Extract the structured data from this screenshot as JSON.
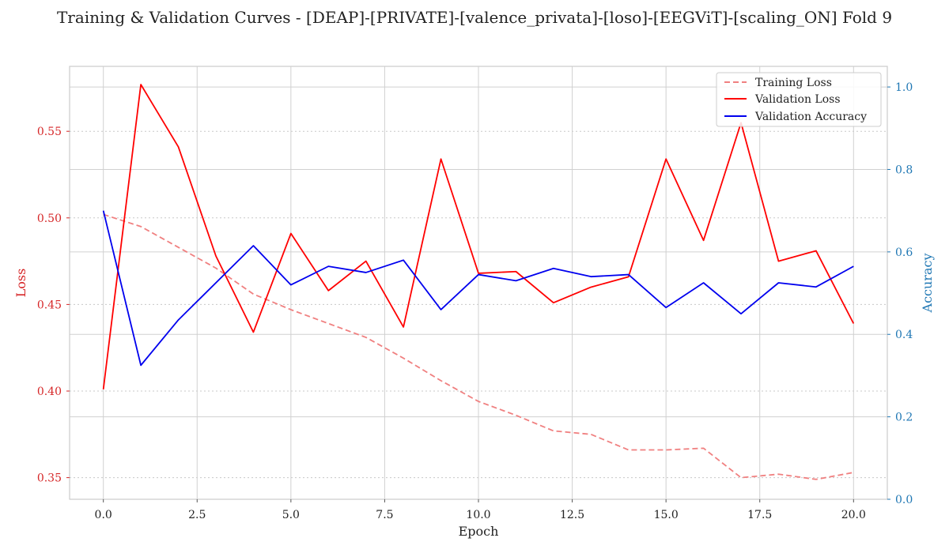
{
  "chart_data": {
    "type": "line",
    "title": "Training & Validation Curves - [DEAP]-[PRIVATE]-[valence_privata]-[loso]-[EEGViT]-[scaling_ON] Fold 9",
    "xlabel": "Epoch",
    "ylabel_left": "Loss",
    "ylabel_right": "Accuracy",
    "xlim": [
      -0.9,
      20.9
    ],
    "ylim_left": [
      0.3375,
      0.5875
    ],
    "ylim_right": [
      0.0,
      1.05
    ],
    "x_ticks": [
      0,
      2.5,
      5,
      7.5,
      10,
      12.5,
      15,
      17.5,
      20
    ],
    "x_tick_labels": [
      "0.0",
      "2.5",
      "5.0",
      "7.5",
      "10.0",
      "12.5",
      "15.0",
      "17.5",
      "20.0"
    ],
    "y_left_ticks": [
      0.35,
      0.4,
      0.45,
      0.5,
      0.55
    ],
    "y_left_tick_labels": [
      "0.35",
      "0.40",
      "0.45",
      "0.50",
      "0.55"
    ],
    "y_right_ticks": [
      0.0,
      0.2,
      0.4,
      0.6,
      0.8,
      1.0
    ],
    "y_right_tick_labels": [
      "0.0",
      "0.2",
      "0.4",
      "0.6",
      "0.8",
      "1.0"
    ],
    "x": [
      0,
      1,
      2,
      3,
      4,
      5,
      6,
      7,
      8,
      9,
      10,
      11,
      12,
      13,
      14,
      15,
      16,
      17,
      18,
      19,
      20
    ],
    "series": [
      {
        "name": "Training Loss",
        "axis": "left",
        "color": "#f08080",
        "dashed": true,
        "values": [
          0.502,
          0.495,
          0.483,
          0.471,
          0.456,
          0.447,
          0.439,
          0.431,
          0.419,
          0.406,
          0.394,
          0.386,
          0.377,
          0.375,
          0.366,
          0.366,
          0.367,
          0.35,
          0.352,
          0.349,
          0.353
        ]
      },
      {
        "name": "Validation Loss",
        "axis": "left",
        "color": "#ff0000",
        "dashed": false,
        "values": [
          0.401,
          0.577,
          0.541,
          0.478,
          0.434,
          0.491,
          0.458,
          0.475,
          0.437,
          0.534,
          0.468,
          0.469,
          0.451,
          0.46,
          0.466,
          0.534,
          0.487,
          0.555,
          0.475,
          0.481,
          0.439
        ]
      },
      {
        "name": "Validation Accuracy",
        "axis": "right",
        "color": "#0000ee",
        "dashed": false,
        "values": [
          0.7,
          0.325,
          0.435,
          0.525,
          0.615,
          0.52,
          0.565,
          0.55,
          0.58,
          0.46,
          0.545,
          0.53,
          0.56,
          0.54,
          0.545,
          0.465,
          0.525,
          0.45,
          0.525,
          0.515,
          0.565
        ]
      }
    ],
    "grid": true,
    "legend_position": "top-right"
  },
  "colors": {
    "left_axis": "#d62728",
    "right_axis": "#1f77b4",
    "grid": "#d0d0d0",
    "frame": "#cccccc"
  }
}
